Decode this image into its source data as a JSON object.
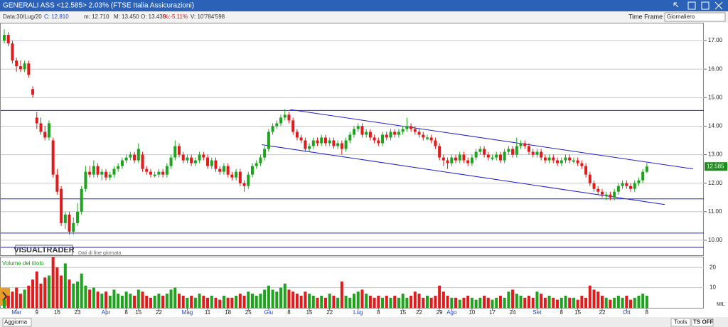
{
  "window": {
    "title": "GENERALI ASS <12.585> 2.03%  (FTSE Italia Assicurazioni)",
    "info": [
      "Data:30/Lug/20",
      "C: 12.810",
      "m: 12.710",
      "M: 13.450",
      "O: 13.430",
      "%:-5.11%",
      "V: 10'784'598"
    ],
    "time_frame_label": "Time Frame",
    "time_frame": "Giornaliero",
    "brand": "VISUALTRADER",
    "brand_note": "Dati di fine giornata",
    "volume_title": "Volume del titolo",
    "volume_unit": "MIL",
    "buttons": [
      "Aggiorna",
      "Tools",
      "TS OFF"
    ]
  },
  "chart_data": {
    "type": "candlestick",
    "up_color": "#1fa31f",
    "down_color": "#e01b1b",
    "grid": true,
    "xlim": [
      -1.05,
      172
    ],
    "ylim": [
      9.475,
      17.6
    ],
    "yticks": [
      10,
      11,
      12,
      13,
      14,
      15,
      16,
      17
    ],
    "yticks_labels": [
      "10.00",
      "11.00",
      "12.00",
      "13.00",
      "14.00",
      "15.00",
      "16.00",
      "17.00"
    ],
    "xticks": [
      {
        "value": 3,
        "label": "Mar"
      },
      {
        "value": 8,
        "label": "9"
      },
      {
        "value": 13,
        "label": "16"
      },
      {
        "value": 18,
        "label": "23"
      },
      {
        "value": 25,
        "label": "Apr"
      },
      {
        "value": 30,
        "label": "8"
      },
      {
        "value": 33,
        "label": "15"
      },
      {
        "value": 38,
        "label": "22"
      },
      {
        "value": 45,
        "label": "Mag"
      },
      {
        "value": 50,
        "label": "11"
      },
      {
        "value": 55,
        "label": "18"
      },
      {
        "value": 60,
        "label": "25"
      },
      {
        "value": 65,
        "label": "Giu"
      },
      {
        "value": 70,
        "label": "8"
      },
      {
        "value": 75,
        "label": "15"
      },
      {
        "value": 80,
        "label": "22"
      },
      {
        "value": 87,
        "label": "Lug"
      },
      {
        "value": 92,
        "label": "8"
      },
      {
        "value": 98,
        "label": "15"
      },
      {
        "value": 102,
        "label": "22"
      },
      {
        "value": 107,
        "label": "29"
      },
      {
        "value": 110,
        "label": "Ago"
      },
      {
        "value": 115,
        "label": "10"
      },
      {
        "value": 120,
        "label": "17"
      },
      {
        "value": 125,
        "label": "24"
      },
      {
        "value": 131,
        "label": "Set"
      },
      {
        "value": 137,
        "label": "8"
      },
      {
        "value": 141,
        "label": "15"
      },
      {
        "value": 147,
        "label": "22"
      },
      {
        "value": 153,
        "label": "Ott"
      },
      {
        "value": 158,
        "label": "8"
      }
    ],
    "hlines": [
      14.55,
      11.45,
      10.25,
      9.75
    ],
    "line_color": "#2020d0",
    "trendlines": [
      [
        [
          70.3,
          14.58
        ],
        [
          169.4,
          12.5
        ]
      ],
      [
        [
          63.3,
          13.35
        ],
        [
          162.4,
          11.25
        ]
      ]
    ],
    "ohlc": [
      [
        17.0,
        17.4,
        16.9,
        17.2
      ],
      [
        17.2,
        17.3,
        16.8,
        16.9
      ],
      [
        16.9,
        17.0,
        16.2,
        16.3
      ],
      [
        16.3,
        16.4,
        15.9,
        16.1
      ],
      [
        16.1,
        16.3,
        15.9,
        16.0
      ],
      [
        16.0,
        16.3,
        15.9,
        16.2
      ],
      [
        16.2,
        16.3,
        15.7,
        15.8
      ],
      [
        15.3,
        15.4,
        15.0,
        15.1
      ],
      [
        14.3,
        14.5,
        13.9,
        14.1
      ],
      [
        14.1,
        14.3,
        13.7,
        13.8
      ],
      [
        13.8,
        14.0,
        13.5,
        13.6
      ],
      [
        13.6,
        14.2,
        13.5,
        14.1
      ],
      [
        13.5,
        13.6,
        12.2,
        12.3
      ],
      [
        12.3,
        12.5,
        11.6,
        11.7
      ],
      [
        11.8,
        11.9,
        10.5,
        10.6
      ],
      [
        10.6,
        11.0,
        10.4,
        10.9
      ],
      [
        10.9,
        11.0,
        10.2,
        10.3
      ],
      [
        10.3,
        10.8,
        10.2,
        10.6
      ],
      [
        10.6,
        11.3,
        10.5,
        11.0
      ],
      [
        11.0,
        11.9,
        10.9,
        11.8
      ],
      [
        11.8,
        12.6,
        11.7,
        12.4
      ],
      [
        12.4,
        12.6,
        12.2,
        12.3
      ],
      [
        12.3,
        12.8,
        12.2,
        12.6
      ],
      [
        12.6,
        12.7,
        12.2,
        12.3
      ],
      [
        12.3,
        12.5,
        12.1,
        12.4
      ],
      [
        12.4,
        12.5,
        12.1,
        12.2
      ],
      [
        12.2,
        12.4,
        12.1,
        12.3
      ],
      [
        12.3,
        12.6,
        12.2,
        12.5
      ],
      [
        12.5,
        12.7,
        12.4,
        12.6
      ],
      [
        12.6,
        12.9,
        12.5,
        12.8
      ],
      [
        12.8,
        13.0,
        12.7,
        12.9
      ],
      [
        12.9,
        13.1,
        12.8,
        13.0
      ],
      [
        13.0,
        13.1,
        12.7,
        12.8
      ],
      [
        12.8,
        13.4,
        12.7,
        13.2
      ],
      [
        13.0,
        13.1,
        12.4,
        12.5
      ],
      [
        12.5,
        12.6,
        12.3,
        12.4
      ],
      [
        12.4,
        12.5,
        12.2,
        12.3
      ],
      [
        12.25,
        12.4,
        12.2,
        12.3
      ],
      [
        12.3,
        12.5,
        12.2,
        12.4
      ],
      [
        12.4,
        12.5,
        12.2,
        12.3
      ],
      [
        12.3,
        12.7,
        12.2,
        12.6
      ],
      [
        12.6,
        13.0,
        12.5,
        12.9
      ],
      [
        12.9,
        13.5,
        12.8,
        13.3
      ],
      [
        13.3,
        13.4,
        12.9,
        13.0
      ],
      [
        13.0,
        13.1,
        12.7,
        12.8
      ],
      [
        12.8,
        13.0,
        12.7,
        12.9
      ],
      [
        12.9,
        13.0,
        12.6,
        12.7
      ],
      [
        12.7,
        12.9,
        12.6,
        12.8
      ],
      [
        12.8,
        13.1,
        12.7,
        13.0
      ],
      [
        13.0,
        13.1,
        12.8,
        12.9
      ],
      [
        12.9,
        13.0,
        12.5,
        12.6
      ],
      [
        12.6,
        12.9,
        12.5,
        12.8
      ],
      [
        12.8,
        12.9,
        12.4,
        12.5
      ],
      [
        12.5,
        12.6,
        12.3,
        12.4
      ],
      [
        12.4,
        12.7,
        12.3,
        12.6
      ],
      [
        12.6,
        12.7,
        12.2,
        12.3
      ],
      [
        12.3,
        12.4,
        12.1,
        12.2
      ],
      [
        12.2,
        12.5,
        12.1,
        12.4
      ],
      [
        12.4,
        12.5,
        11.9,
        12.0
      ],
      [
        12.0,
        12.1,
        11.7,
        11.9
      ],
      [
        11.9,
        12.4,
        11.8,
        12.3
      ],
      [
        12.3,
        12.7,
        12.2,
        12.6
      ],
      [
        12.6,
        12.8,
        12.5,
        12.7
      ],
      [
        12.7,
        13.0,
        12.6,
        12.9
      ],
      [
        12.9,
        13.3,
        12.8,
        13.2
      ],
      [
        13.2,
        13.9,
        13.1,
        13.8
      ],
      [
        13.8,
        14.1,
        13.7,
        14.0
      ],
      [
        14.0,
        14.2,
        13.9,
        14.1
      ],
      [
        14.1,
        14.4,
        14.0,
        14.3
      ],
      [
        14.3,
        14.6,
        14.2,
        14.4
      ],
      [
        14.4,
        14.5,
        14.1,
        14.2
      ],
      [
        14.2,
        14.3,
        13.7,
        13.8
      ],
      [
        13.8,
        13.9,
        13.5,
        13.6
      ],
      [
        13.6,
        13.7,
        13.4,
        13.5
      ],
      [
        13.5,
        13.6,
        13.1,
        13.2
      ],
      [
        13.2,
        13.4,
        13.1,
        13.3
      ],
      [
        13.3,
        13.6,
        13.2,
        13.5
      ],
      [
        13.5,
        13.6,
        13.3,
        13.4
      ],
      [
        13.4,
        13.7,
        13.3,
        13.6
      ],
      [
        13.6,
        13.7,
        13.3,
        13.4
      ],
      [
        13.4,
        13.6,
        13.3,
        13.5
      ],
      [
        13.5,
        13.6,
        13.2,
        13.3
      ],
      [
        13.3,
        13.5,
        13.2,
        13.4
      ],
      [
        13.4,
        13.5,
        13.0,
        13.2
      ],
      [
        13.2,
        13.6,
        13.1,
        13.5
      ],
      [
        13.5,
        13.8,
        13.4,
        13.7
      ],
      [
        13.7,
        14.0,
        13.6,
        13.9
      ],
      [
        13.9,
        14.1,
        13.8,
        14.0
      ],
      [
        14.0,
        14.1,
        13.6,
        13.7
      ],
      [
        13.7,
        13.9,
        13.6,
        13.8
      ],
      [
        13.8,
        13.9,
        13.5,
        13.6
      ],
      [
        13.6,
        13.7,
        13.4,
        13.5
      ],
      [
        13.5,
        13.6,
        13.3,
        13.4
      ],
      [
        13.4,
        13.8,
        13.3,
        13.7
      ],
      [
        13.7,
        13.8,
        13.5,
        13.6
      ],
      [
        13.6,
        13.9,
        13.5,
        13.8
      ],
      [
        13.8,
        13.9,
        13.6,
        13.7
      ],
      [
        13.7,
        13.9,
        13.6,
        13.8
      ],
      [
        13.8,
        14.0,
        13.7,
        13.9
      ],
      [
        13.9,
        14.3,
        13.8,
        14.0
      ],
      [
        14.0,
        14.1,
        13.8,
        13.9
      ],
      [
        13.9,
        14.0,
        13.7,
        13.8
      ],
      [
        13.8,
        13.9,
        13.6,
        13.7
      ],
      [
        13.7,
        13.8,
        13.5,
        13.6
      ],
      [
        13.55,
        13.7,
        13.5,
        13.6
      ],
      [
        13.6,
        13.7,
        13.4,
        13.5
      ],
      [
        13.5,
        13.6,
        13.2,
        13.3
      ],
      [
        13.3,
        13.4,
        12.8,
        12.9
      ],
      [
        12.9,
        13.0,
        12.6,
        12.8
      ],
      [
        12.8,
        12.9,
        12.5,
        12.7
      ],
      [
        12.7,
        13.0,
        12.6,
        12.9
      ],
      [
        12.9,
        13.0,
        12.7,
        12.8
      ],
      [
        12.8,
        13.1,
        12.7,
        13.0
      ],
      [
        13.0,
        13.1,
        12.7,
        12.8
      ],
      [
        12.8,
        12.9,
        12.6,
        12.7
      ],
      [
        12.7,
        13.0,
        12.6,
        12.9
      ],
      [
        12.9,
        13.2,
        12.8,
        13.1
      ],
      [
        13.1,
        13.3,
        13.0,
        13.2
      ],
      [
        13.2,
        13.3,
        12.9,
        13.0
      ],
      [
        13.0,
        13.1,
        12.8,
        12.9
      ],
      [
        12.85,
        13.0,
        12.8,
        12.9
      ],
      [
        12.9,
        13.1,
        12.8,
        13.0
      ],
      [
        13.0,
        13.1,
        12.7,
        12.8
      ],
      [
        12.8,
        13.2,
        12.7,
        13.1
      ],
      [
        13.1,
        13.3,
        13.0,
        13.2
      ],
      [
        13.2,
        13.3,
        12.9,
        13.0
      ],
      [
        13.0,
        13.6,
        12.9,
        13.3
      ],
      [
        13.3,
        13.5,
        13.2,
        13.4
      ],
      [
        13.4,
        13.5,
        13.2,
        13.3
      ],
      [
        13.3,
        13.4,
        13.0,
        13.1
      ],
      [
        13.1,
        13.2,
        12.9,
        13.0
      ],
      [
        13.0,
        13.2,
        12.9,
        13.1
      ],
      [
        13.1,
        13.2,
        12.8,
        12.9
      ],
      [
        12.9,
        13.0,
        12.7,
        12.8
      ],
      [
        12.8,
        13.0,
        12.7,
        12.9
      ],
      [
        12.9,
        13.0,
        12.7,
        12.8
      ],
      [
        12.8,
        12.9,
        12.6,
        12.7
      ],
      [
        12.7,
        12.9,
        12.6,
        12.8
      ],
      [
        12.8,
        13.0,
        12.7,
        12.9
      ],
      [
        12.9,
        13.0,
        12.7,
        12.8
      ],
      [
        12.75,
        12.9,
        12.7,
        12.8
      ],
      [
        12.8,
        12.9,
        12.6,
        12.7
      ],
      [
        12.7,
        12.8,
        12.5,
        12.6
      ],
      [
        12.6,
        12.7,
        12.2,
        12.3
      ],
      [
        12.3,
        12.4,
        11.9,
        12.0
      ],
      [
        12.0,
        12.1,
        11.7,
        11.8
      ],
      [
        11.8,
        11.9,
        11.6,
        11.7
      ],
      [
        11.7,
        11.8,
        11.5,
        11.6
      ],
      [
        11.55,
        11.7,
        11.4,
        11.6
      ],
      [
        11.6,
        11.7,
        11.4,
        11.5
      ],
      [
        11.5,
        11.8,
        11.4,
        11.7
      ],
      [
        11.7,
        12.0,
        11.6,
        11.9
      ],
      [
        11.9,
        12.1,
        11.8,
        12.0
      ],
      [
        12.0,
        12.1,
        11.8,
        11.9
      ],
      [
        11.9,
        12.0,
        11.7,
        11.8
      ],
      [
        11.8,
        12.1,
        11.7,
        12.0
      ],
      [
        12.0,
        12.2,
        11.9,
        12.1
      ],
      [
        12.1,
        12.5,
        12.0,
        12.4
      ],
      [
        12.4,
        12.71,
        12.35,
        12.585
      ]
    ],
    "volume_ylim": [
      0,
      25
    ],
    "volume_yticks": [
      10,
      20
    ],
    "volume": [
      4,
      6,
      8,
      10,
      7,
      9,
      11,
      14,
      18,
      12,
      15,
      16,
      25,
      20,
      16,
      22,
      14,
      12,
      13,
      17,
      11,
      9,
      10,
      8,
      7,
      8,
      6,
      9,
      7,
      6,
      8,
      7,
      6,
      9,
      8,
      6,
      5,
      6,
      7,
      6,
      7,
      9,
      10,
      7,
      6,
      5,
      6,
      5,
      7,
      6,
      5,
      6,
      5,
      4,
      6,
      5,
      5,
      6,
      7,
      6,
      8,
      7,
      6,
      7,
      9,
      11,
      9,
      8,
      10,
      12,
      9,
      8,
      7,
      6,
      8,
      7,
      6,
      5,
      6,
      5,
      7,
      6,
      5,
      13,
      6,
      5,
      7,
      8,
      9,
      7,
      6,
      5,
      6,
      5,
      6,
      5,
      6,
      5,
      7,
      5,
      6,
      8,
      7,
      5,
      6,
      5,
      6,
      11,
      8,
      6,
      5,
      5,
      4,
      5,
      6,
      5,
      4,
      5,
      6,
      5,
      4,
      5,
      6,
      5,
      8,
      9,
      7,
      6,
      5,
      6,
      5,
      8,
      7,
      5,
      6,
      5,
      4,
      5,
      6,
      5,
      5,
      4,
      6,
      5,
      11,
      9,
      8,
      6,
      5,
      4,
      5,
      6,
      5,
      6,
      4,
      5,
      6,
      7,
      6,
      8
    ]
  }
}
